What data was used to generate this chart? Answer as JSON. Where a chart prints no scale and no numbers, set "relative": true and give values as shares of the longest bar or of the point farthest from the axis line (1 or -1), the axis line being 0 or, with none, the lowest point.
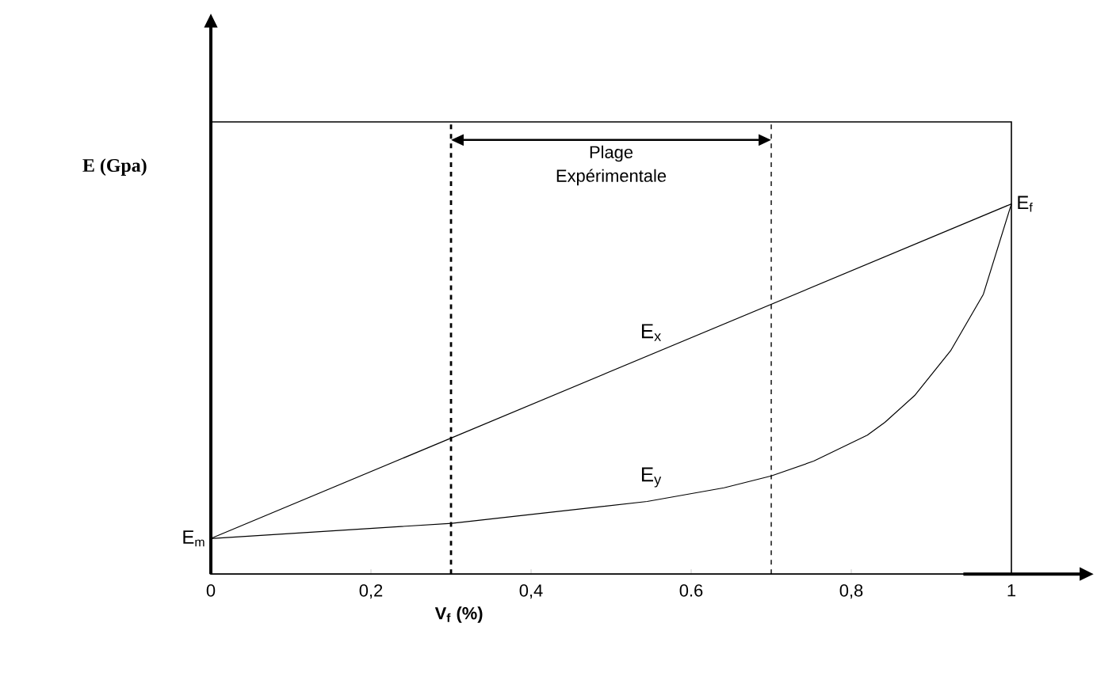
{
  "chart_data": {
    "type": "line",
    "relative": true,
    "xlabel": "V$_{f}$   (%)",
    "ylabel": "E (Gpa)",
    "xlim": [
      0,
      1
    ],
    "xticks": [
      0,
      {
        "value": 0.2,
        "label": "0,2"
      },
      {
        "value": 0.4,
        "label": "0,4"
      },
      {
        "value": 0.6,
        "label": "0.6"
      },
      {
        "value": 0.8,
        "label": "0,8"
      },
      1
    ],
    "series": [
      {
        "name": "E$_{x}$",
        "color": "#000000",
        "x": [
          0,
          1
        ],
        "values": [
          0.096,
          1
        ]
      },
      {
        "name": "E$_{y}$",
        "color": "#000000",
        "x": [
          0,
          0.301,
          0.545,
          0.641,
          0.7,
          0.753,
          0.82,
          0.842,
          0.879,
          0.924,
          0.965,
          1
        ],
        "values": [
          0.096,
          0.137,
          0.196,
          0.233,
          0.265,
          0.305,
          0.375,
          0.41,
          0.482,
          0.603,
          0.756,
          1
        ]
      }
    ],
    "ref_lines": [
      {
        "axis": "x",
        "value": 0.3,
        "line_style": "dashed"
      },
      {
        "axis": "x",
        "value": 0.7,
        "line_style": "dashed"
      }
    ],
    "annotations": [
      "Plage Expérimentale",
      {
        "text": "E$_{m}$",
        "x": 0,
        "y": 0.096
      },
      {
        "text": "E$_{f}$",
        "x": 1,
        "y": 1
      }
    ],
    "grid": false,
    "legend": false
  }
}
